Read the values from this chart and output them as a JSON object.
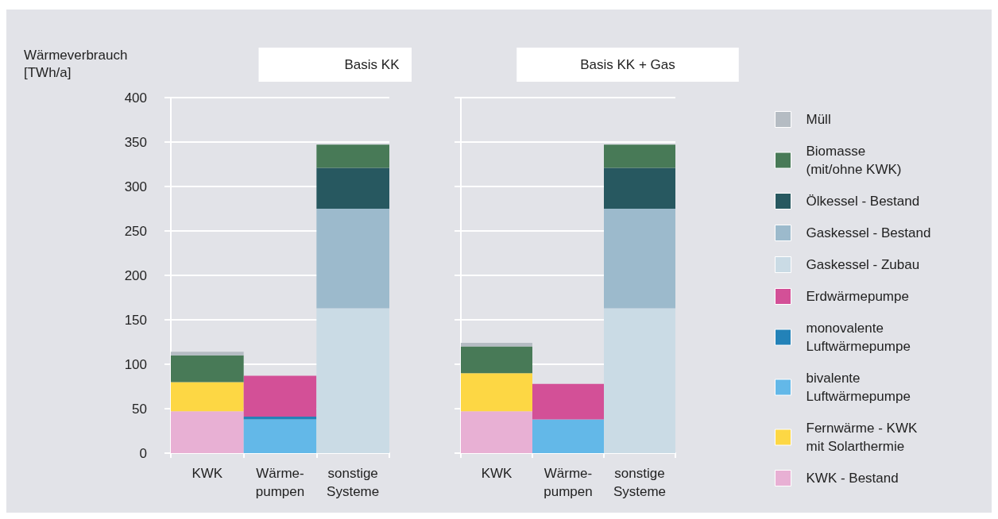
{
  "chart_data": [
    {
      "type": "bar",
      "title": "Basis KK",
      "ylabel": "Wärmeverbrauch\n[TWh/a]",
      "stacked": true,
      "categories": [
        "KWK",
        "Wärme-\npumpen",
        "sonstige\nSysteme"
      ],
      "ylim": [
        0,
        400
      ],
      "yticks": [
        0,
        50,
        100,
        150,
        200,
        250,
        300,
        350,
        400
      ],
      "grid": "y",
      "legend": false,
      "series": [
        {
          "color": "#e8b0d4",
          "values": [
            47,
            0,
            0
          ]
        },
        {
          "color": "#fdd744",
          "values": [
            33,
            0,
            0
          ]
        },
        {
          "color": "#63b8e8",
          "values": [
            0,
            38,
            0
          ]
        },
        {
          "color": "#2382b8",
          "values": [
            0,
            3,
            0
          ]
        },
        {
          "color": "#d35097",
          "values": [
            0,
            46,
            0
          ]
        },
        {
          "color": "#cadbe5",
          "values": [
            0,
            0,
            163
          ]
        },
        {
          "color": "#9cbacc",
          "values": [
            0,
            0,
            112
          ]
        },
        {
          "color": "#275860",
          "values": [
            0,
            0,
            46
          ]
        },
        {
          "color": "#487a57",
          "values": [
            30,
            0,
            26
          ]
        },
        {
          "color": "#b5bcc3",
          "values": [
            4,
            0,
            0
          ]
        }
      ]
    },
    {
      "type": "bar",
      "title": "Basis KK + Gas",
      "stacked": true,
      "categories": [
        "KWK",
        "Wärme-\npumpen",
        "sonstige\nSysteme"
      ],
      "ylim": [
        0,
        400
      ],
      "yticks": [
        0,
        50,
        100,
        150,
        200,
        250,
        300,
        350,
        400
      ],
      "grid": "y",
      "legend": "right",
      "tick_labels": "x",
      "series": [
        {
          "name": "KWK - Bestand",
          "color": "#e8b0d4",
          "values": [
            47,
            0,
            0
          ]
        },
        {
          "name": "Fernwärme - KWK\nmit Solarthermie",
          "color": "#fdd744",
          "values": [
            43,
            0,
            0
          ]
        },
        {
          "name": "bivalente\nLuftwärmepumpe",
          "color": "#63b8e8",
          "values": [
            0,
            38,
            0
          ]
        },
        {
          "name": "monovalente\nLuftwärmepumpe",
          "color": "#2382b8",
          "values": [
            0,
            0,
            0
          ]
        },
        {
          "name": "Erdwärmepumpe",
          "color": "#d35097",
          "values": [
            0,
            40,
            0
          ]
        },
        {
          "name": "Gaskessel - Zubau",
          "color": "#cadbe5",
          "values": [
            0,
            0,
            163
          ]
        },
        {
          "name": "Gaskessel - Bestand",
          "color": "#9cbacc",
          "values": [
            0,
            0,
            112
          ]
        },
        {
          "name": "Ölkessel - Bestand",
          "color": "#275860",
          "values": [
            0,
            0,
            46
          ]
        },
        {
          "name": "Biomasse\n(mit/ohne KWK)",
          "color": "#487a57",
          "values": [
            30,
            0,
            26
          ]
        },
        {
          "name": "Müll",
          "color": "#b5bcc3",
          "values": [
            4,
            0,
            0
          ]
        }
      ]
    }
  ]
}
